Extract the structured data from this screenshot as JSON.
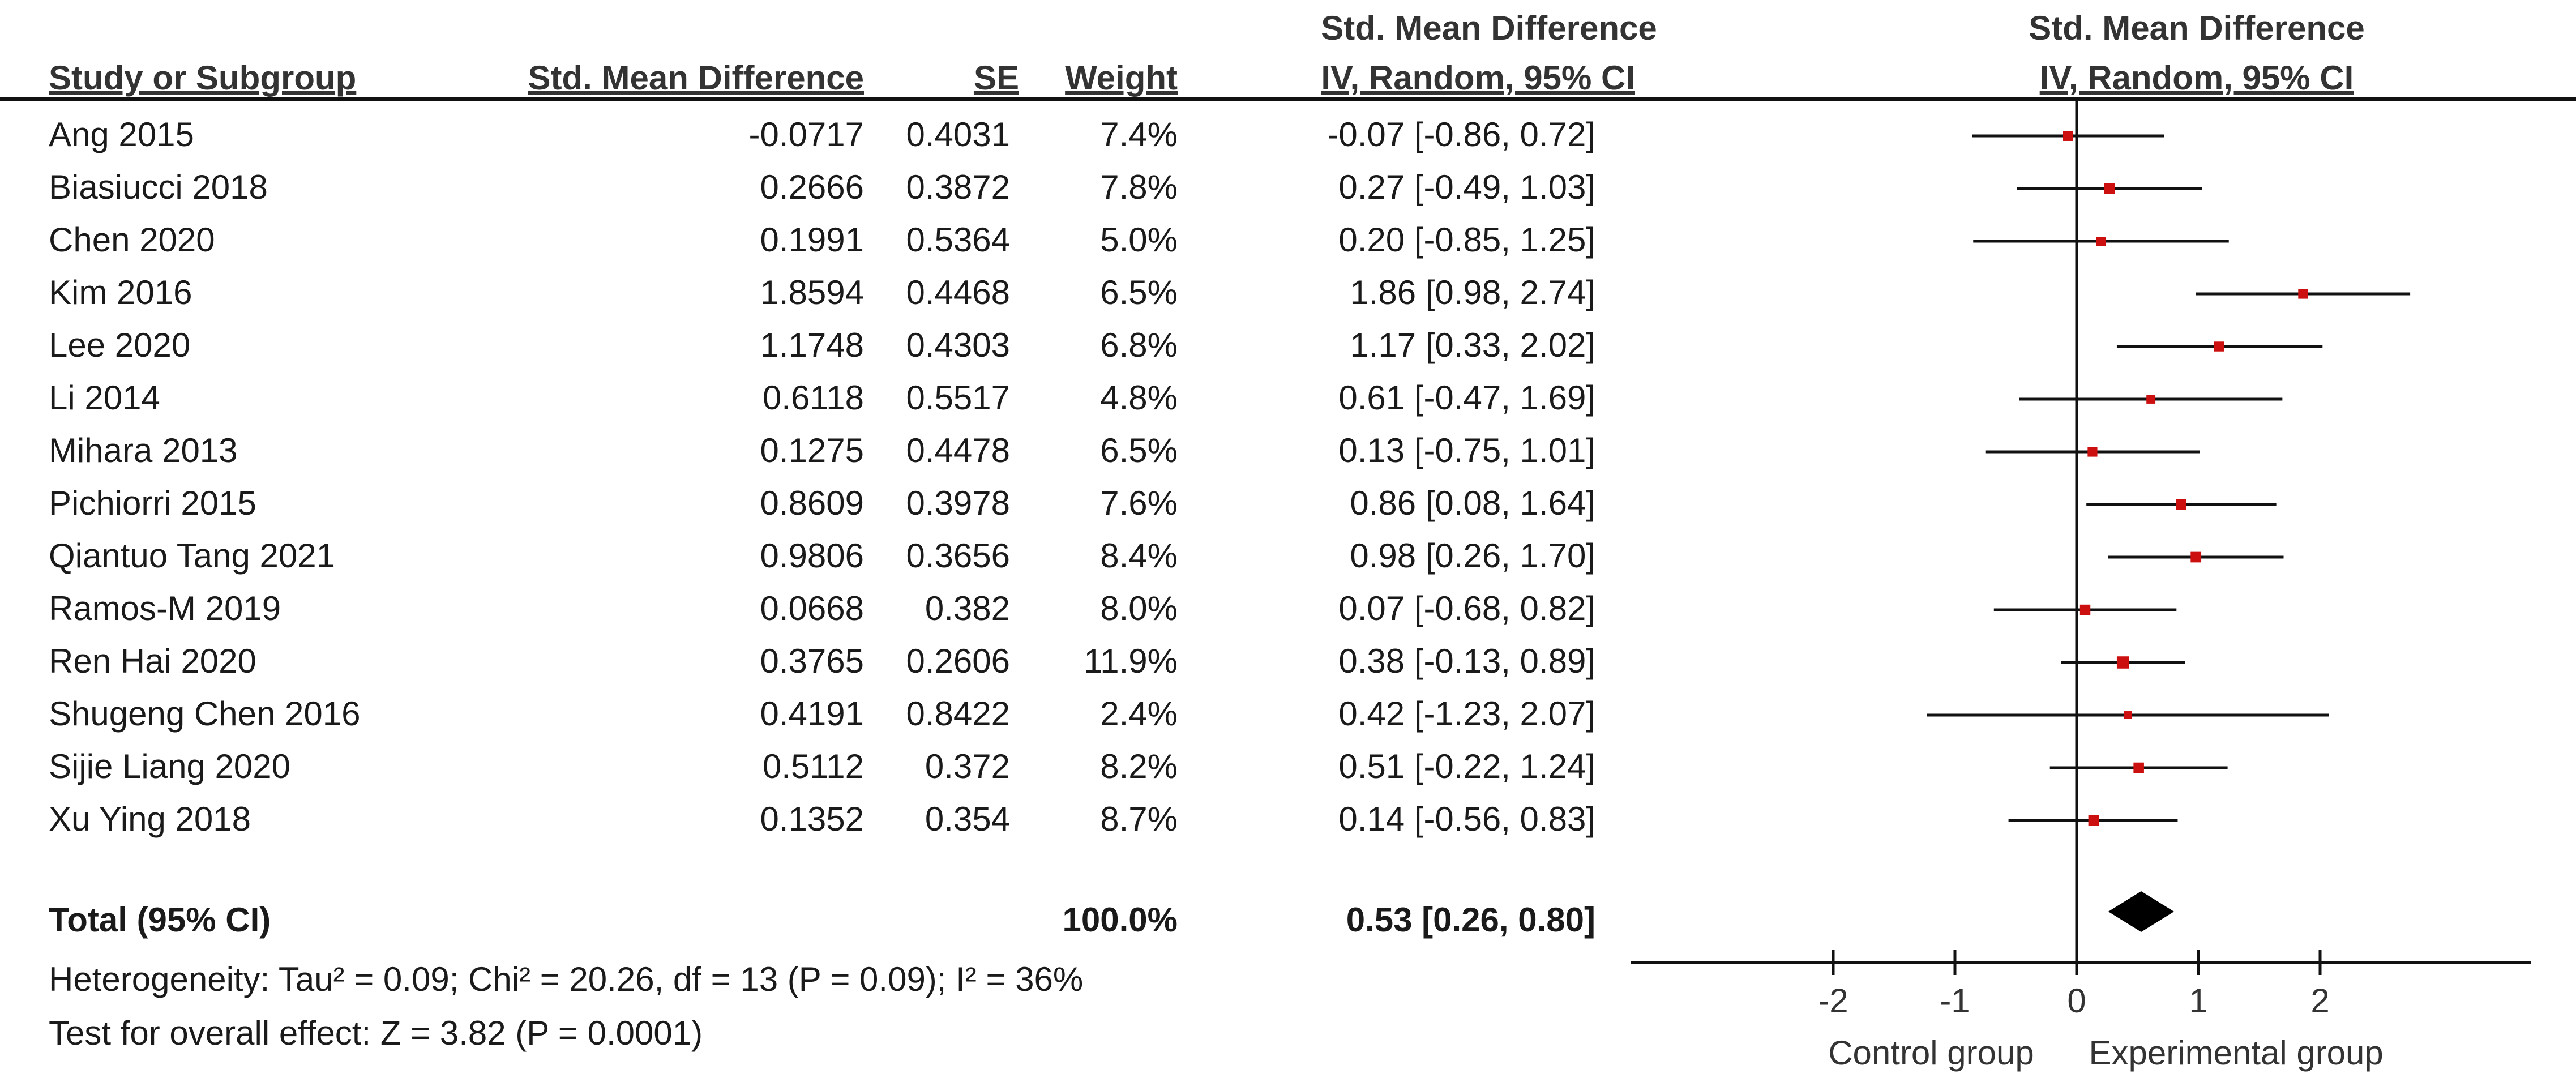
{
  "header": {
    "group_title_left": "Std. Mean Difference",
    "group_title_right": "Std. Mean Difference",
    "col_study": "Study or Subgroup",
    "col_smd": "Std. Mean Difference",
    "col_se": "SE",
    "col_weight": "Weight",
    "col_ci": "IV, Random, 95% CI",
    "col_plot": "IV, Random, 95% CI"
  },
  "studies": [
    {
      "name": "Ang 2015",
      "smd": "-0.0717",
      "se": "0.4031",
      "weight": "7.4%",
      "ci_text": "-0.07 [-0.86, 0.72]"
    },
    {
      "name": "Biasiucci 2018",
      "smd": "0.2666",
      "se": "0.3872",
      "weight": "7.8%",
      "ci_text": "0.27 [-0.49, 1.03]"
    },
    {
      "name": "Chen 2020",
      "smd": "0.1991",
      "se": "0.5364",
      "weight": "5.0%",
      "ci_text": "0.20 [-0.85, 1.25]"
    },
    {
      "name": "Kim 2016",
      "smd": "1.8594",
      "se": "0.4468",
      "weight": "6.5%",
      "ci_text": "1.86 [0.98, 2.74]"
    },
    {
      "name": "Lee 2020",
      "smd": "1.1748",
      "se": "0.4303",
      "weight": "6.8%",
      "ci_text": "1.17 [0.33, 2.02]"
    },
    {
      "name": "Li 2014",
      "smd": "0.6118",
      "se": "0.5517",
      "weight": "4.8%",
      "ci_text": "0.61 [-0.47, 1.69]"
    },
    {
      "name": "Mihara 2013",
      "smd": "0.1275",
      "se": "0.4478",
      "weight": "6.5%",
      "ci_text": "0.13 [-0.75, 1.01]"
    },
    {
      "name": "Pichiorri 2015",
      "smd": "0.8609",
      "se": "0.3978",
      "weight": "7.6%",
      "ci_text": "0.86 [0.08, 1.64]"
    },
    {
      "name": "Qiantuo Tang 2021",
      "smd": "0.9806",
      "se": "0.3656",
      "weight": "8.4%",
      "ci_text": "0.98 [0.26, 1.70]"
    },
    {
      "name": "Ramos-M 2019",
      "smd": "0.0668",
      "se": "0.382",
      "weight": "8.0%",
      "ci_text": "0.07 [-0.68, 0.82]"
    },
    {
      "name": "Ren Hai 2020",
      "smd": "0.3765",
      "se": "0.2606",
      "weight": "11.9%",
      "ci_text": "0.38 [-0.13, 0.89]"
    },
    {
      "name": "Shugeng Chen 2016",
      "smd": "0.4191",
      "se": "0.8422",
      "weight": "2.4%",
      "ci_text": "0.42 [-1.23, 2.07]"
    },
    {
      "name": "Sijie Liang 2020",
      "smd": "0.5112",
      "se": "0.372",
      "weight": "8.2%",
      "ci_text": "0.51 [-0.22, 1.24]"
    },
    {
      "name": "Xu Ying 2018",
      "smd": "0.1352",
      "se": "0.354",
      "weight": "8.7%",
      "ci_text": "0.14 [-0.56, 0.83]"
    }
  ],
  "total": {
    "label": "Total (95% CI)",
    "weight": "100.0%",
    "ci_text": "0.53 [0.26, 0.80]"
  },
  "footer": {
    "heterogeneity": "Heterogeneity: Tau² = 0.09; Chi² = 20.26, df = 13 (P = 0.09); I² = 36%",
    "overall_effect": "Test for overall effect: Z = 3.82 (P = 0.0001)"
  },
  "chart_data": {
    "type": "forest",
    "x_axis": {
      "min": -3.5,
      "max": 3.7,
      "ticks": [
        -2,
        -1,
        0,
        1,
        2
      ],
      "tick_labels": [
        "-2",
        "-1",
        "0",
        "1",
        "2"
      ],
      "left_label": "Control group",
      "right_label": "Experimental group"
    },
    "points": [
      {
        "est": -0.07,
        "lo": -0.86,
        "hi": 0.72,
        "weight": 7.4
      },
      {
        "est": 0.27,
        "lo": -0.49,
        "hi": 1.03,
        "weight": 7.8
      },
      {
        "est": 0.2,
        "lo": -0.85,
        "hi": 1.25,
        "weight": 5.0
      },
      {
        "est": 1.86,
        "lo": 0.98,
        "hi": 2.74,
        "weight": 6.5
      },
      {
        "est": 1.17,
        "lo": 0.33,
        "hi": 2.02,
        "weight": 6.8
      },
      {
        "est": 0.61,
        "lo": -0.47,
        "hi": 1.69,
        "weight": 4.8
      },
      {
        "est": 0.13,
        "lo": -0.75,
        "hi": 1.01,
        "weight": 6.5
      },
      {
        "est": 0.86,
        "lo": 0.08,
        "hi": 1.64,
        "weight": 7.6
      },
      {
        "est": 0.98,
        "lo": 0.26,
        "hi": 1.7,
        "weight": 8.4
      },
      {
        "est": 0.07,
        "lo": -0.68,
        "hi": 0.82,
        "weight": 8.0
      },
      {
        "est": 0.38,
        "lo": -0.13,
        "hi": 0.89,
        "weight": 11.9
      },
      {
        "est": 0.42,
        "lo": -1.23,
        "hi": 2.07,
        "weight": 2.4
      },
      {
        "est": 0.51,
        "lo": -0.22,
        "hi": 1.24,
        "weight": 8.2
      },
      {
        "est": 0.14,
        "lo": -0.56,
        "hi": 0.83,
        "weight": 8.7
      }
    ],
    "total": {
      "est": 0.53,
      "lo": 0.26,
      "hi": 0.8
    },
    "colors": {
      "marker": "#cc1010",
      "line": "#111111",
      "diamond": "#000000"
    }
  }
}
